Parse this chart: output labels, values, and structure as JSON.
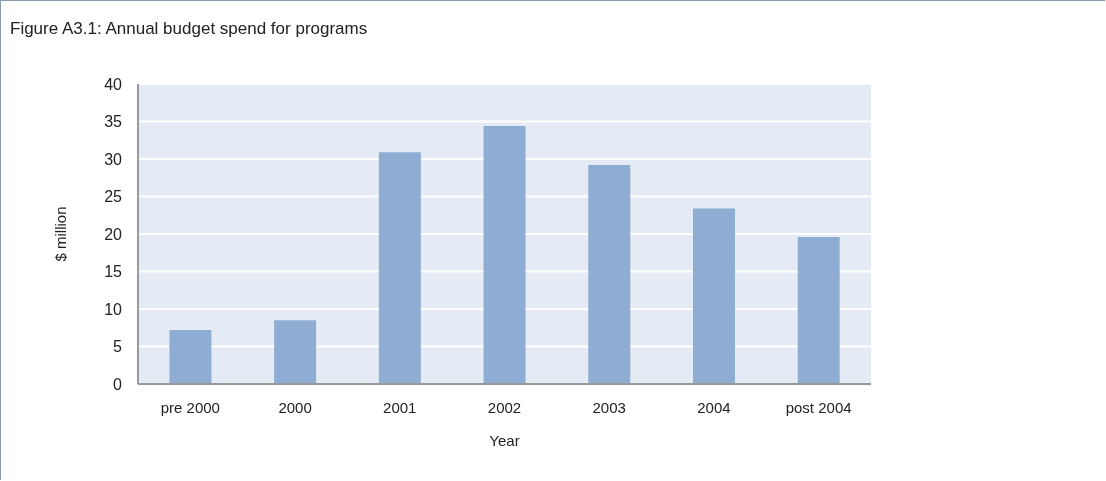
{
  "chart_data": {
    "type": "bar",
    "title": "Figure A3.1: Annual budget spend for programs",
    "xlabel": "Year",
    "ylabel": "$ million",
    "categories": [
      "pre 2000",
      "2000",
      "2001",
      "2002",
      "2003",
      "2004",
      "post 2004"
    ],
    "values": [
      7.2,
      8.5,
      30.9,
      34.4,
      29.2,
      23.4,
      19.6
    ],
    "color": "#8fadd3",
    "ylim": [
      0,
      40
    ],
    "yticks": [
      0,
      5,
      10,
      15,
      20,
      25,
      30,
      35,
      40
    ],
    "grid": "y"
  }
}
